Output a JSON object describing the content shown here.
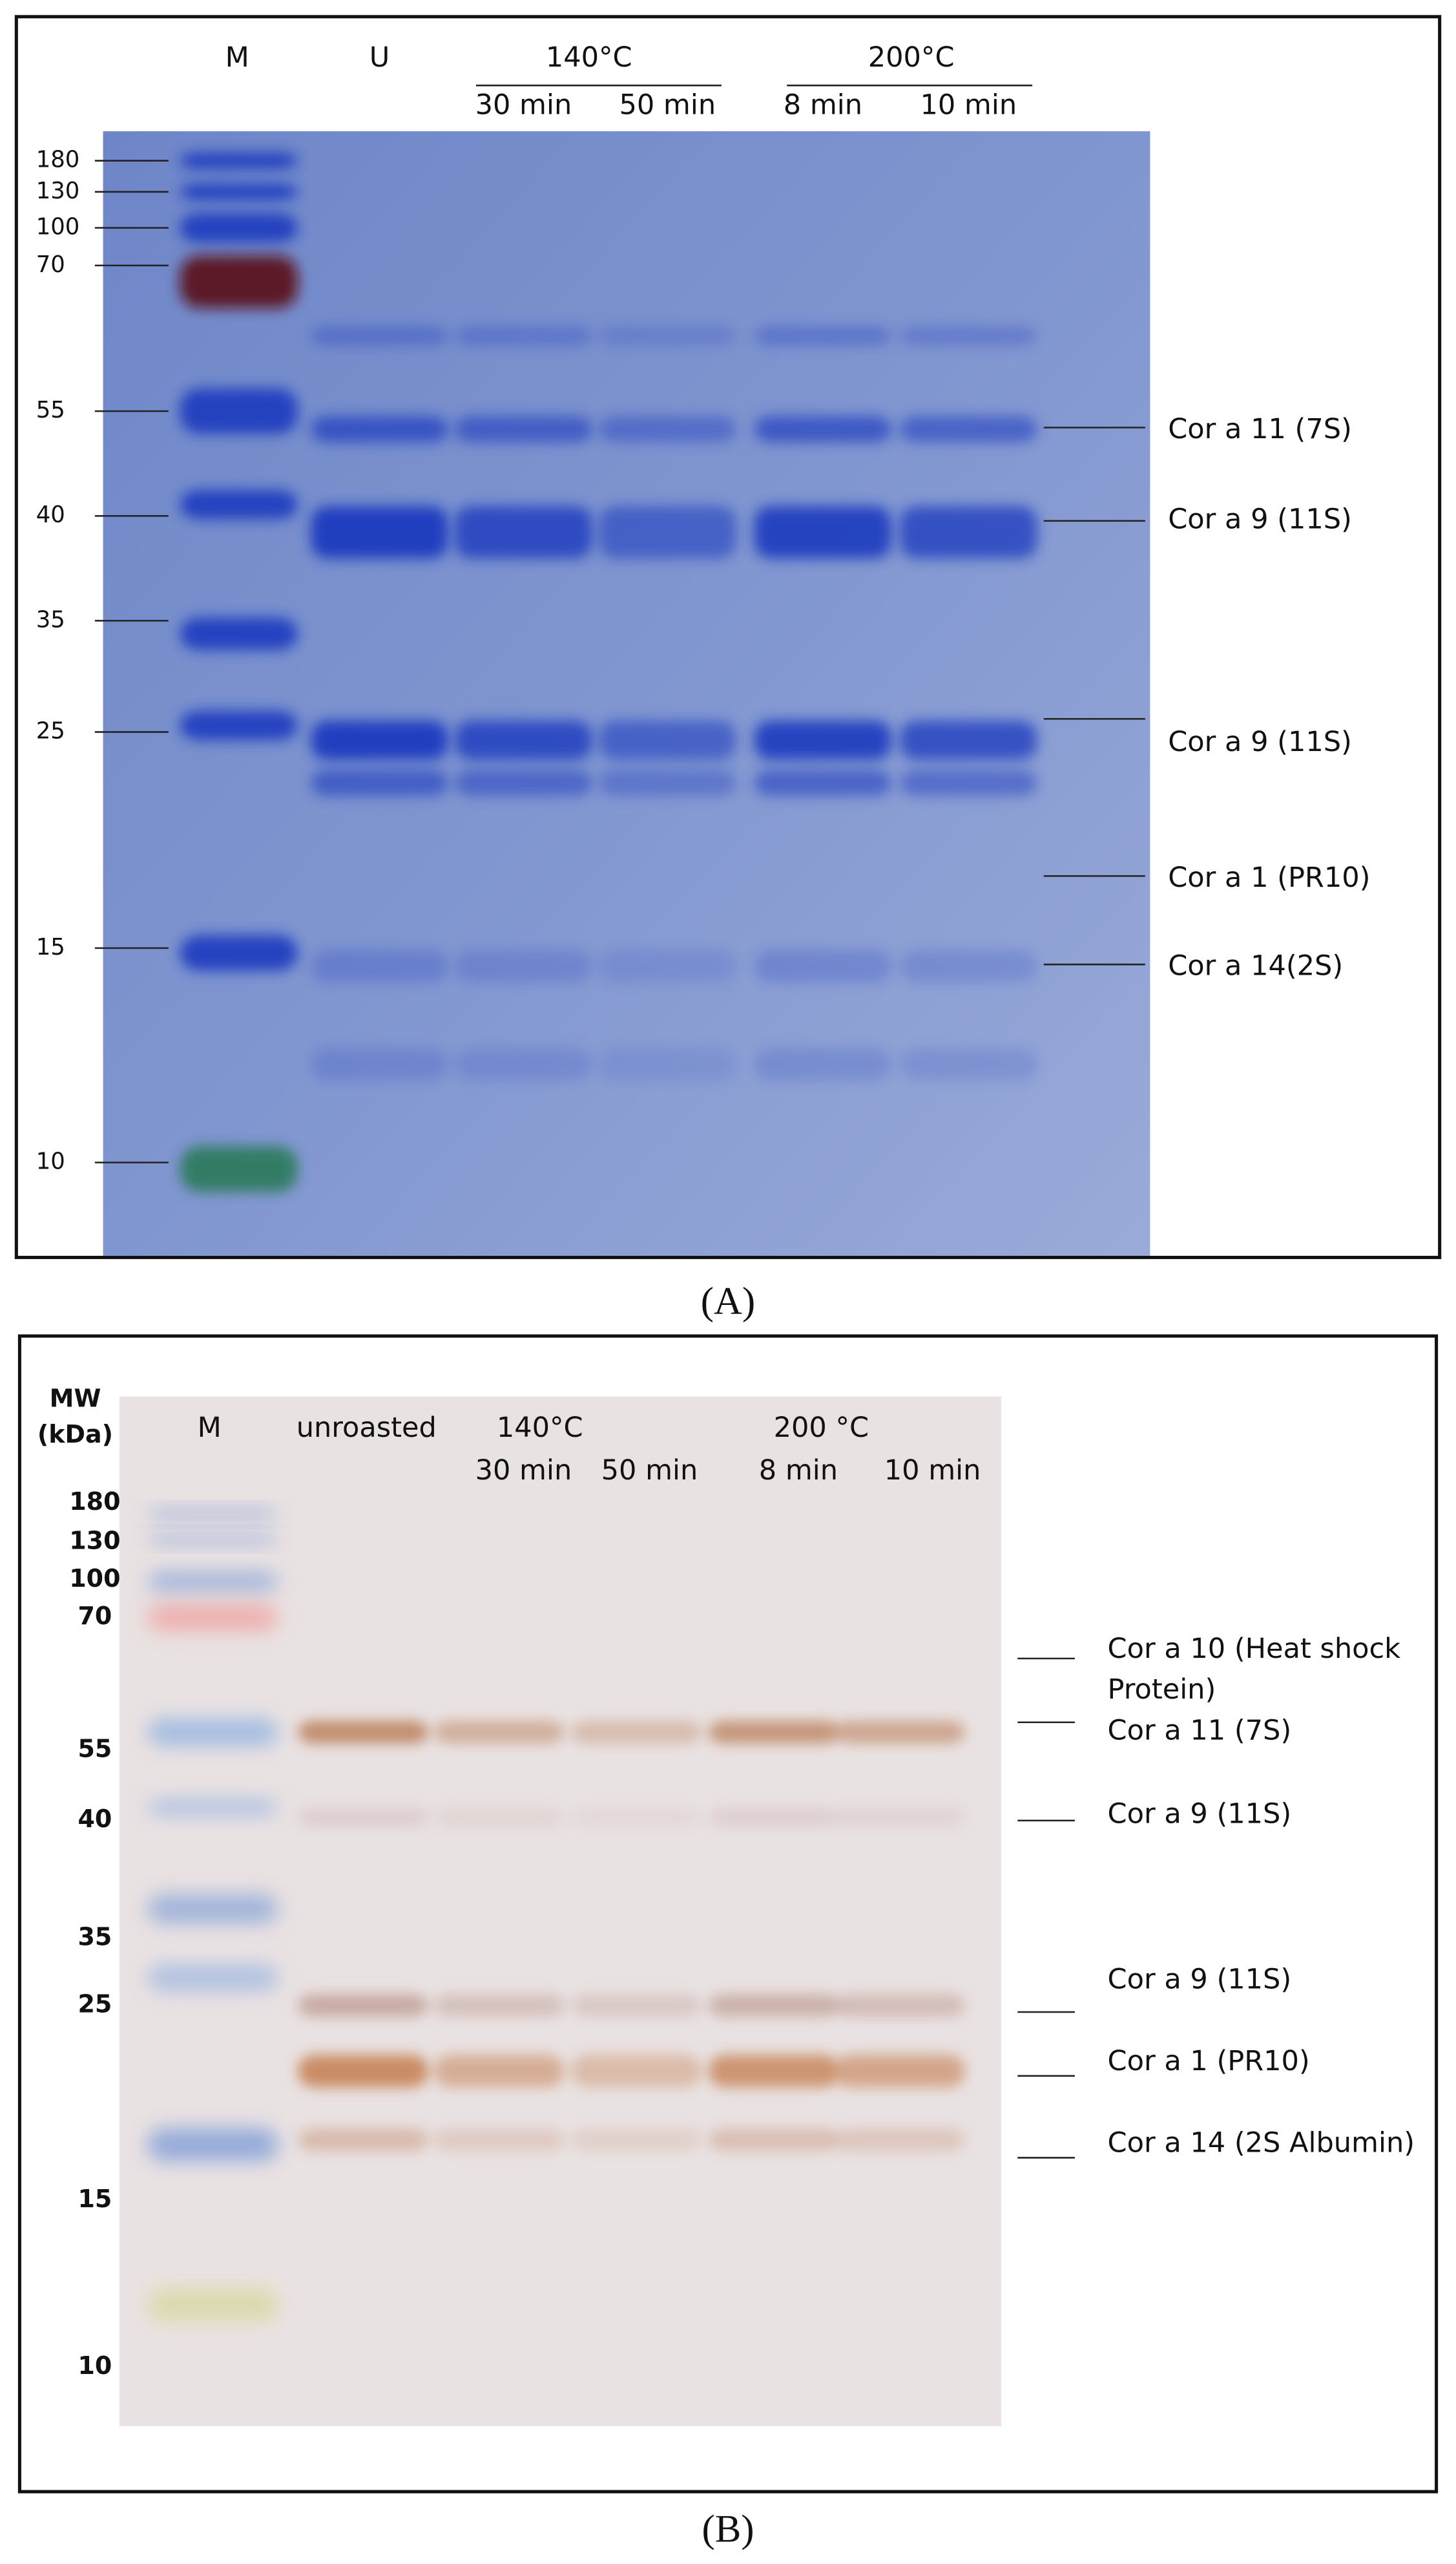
{
  "panel_a": {
    "lane_labels": [
      "M",
      "U"
    ],
    "groups": [
      {
        "label": "140°C",
        "times": [
          "30 min",
          "50 min"
        ]
      },
      {
        "label": "200°C",
        "times": [
          "8 min",
          "10 min"
        ]
      }
    ],
    "mw_markers": [
      "180",
      "130",
      "100",
      "70",
      "55",
      "40",
      "35",
      "25",
      "15",
      "10"
    ],
    "bands": [
      "Cor a 11 (7S)",
      "Cor a 9 (11S)",
      "Cor a 9 (11S)",
      "Cor a 1 (PR10)",
      "Cor a 14(2S)"
    ],
    "caption": "(A)"
  },
  "panel_b": {
    "axis_title": [
      "MW",
      "(kDa)"
    ],
    "lane_labels": [
      "M",
      "unroasted"
    ],
    "groups": [
      {
        "label": "140°C",
        "times": [
          "30 min",
          "50 min"
        ]
      },
      {
        "label": "200 °C",
        "times": [
          "8 min",
          "10 min"
        ]
      }
    ],
    "mw_markers": [
      "180",
      "130",
      "100",
      "70",
      "55",
      "40",
      "35",
      "25",
      "15",
      "10"
    ],
    "bands": [
      [
        "Cor a 10 (Heat shock",
        "Protein)"
      ],
      [
        "Cor a 11 (7S)"
      ],
      [
        "Cor a 9 (11S)"
      ],
      [
        "Cor a 9 (11S)"
      ],
      [
        "Cor a 1 (PR10)"
      ],
      [
        "Cor a 14 (2S Albumin)"
      ]
    ],
    "caption": "(B)"
  }
}
